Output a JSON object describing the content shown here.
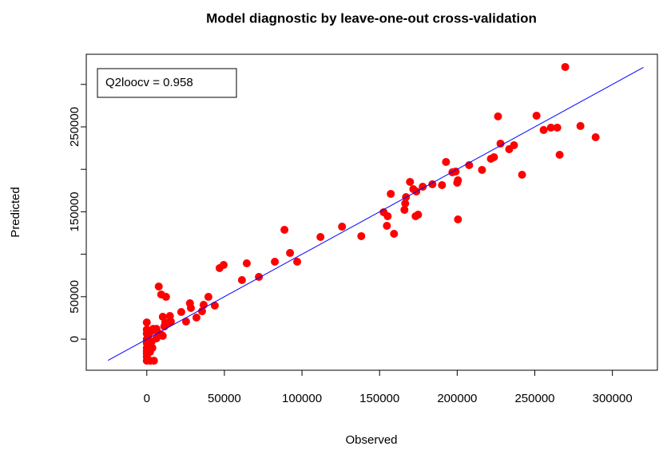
{
  "chart_data": {
    "type": "scatter",
    "title": "Model diagnostic by leave-one-out cross-validation",
    "xlabel": "Observed",
    "ylabel": "Predicted",
    "annotation": "Q2loocv = 0.958",
    "xlim": [
      -39000,
      329000
    ],
    "ylim": [
      -36600,
      335500
    ],
    "xticks": [
      0,
      50000,
      100000,
      150000,
      200000,
      250000,
      300000
    ],
    "yticks": [
      0,
      50000,
      {
        "value": 100000,
        "label": null
      },
      150000,
      {
        "value": 200000,
        "label": null
      },
      250000,
      {
        "value": 300000,
        "label": null
      }
    ],
    "points": {
      "color": "#ff0000",
      "x": [
        0,
        0,
        0,
        0,
        0,
        0,
        0,
        500,
        0,
        2100,
        4600,
        0,
        1000,
        3100,
        4100,
        6200,
        7700,
        9800,
        3100,
        6200,
        3600,
        1000,
        0,
        2100,
        7700,
        9300,
        12400,
        10300,
        10300,
        11900,
        13900,
        11300,
        14900,
        15500,
        22200,
        25300,
        27800,
        28400,
        32000,
        36600,
        39700,
        43800,
        35600,
        46900,
        49500,
        61300,
        64400,
        72200,
        82500,
        88700,
        92300,
        96900,
        111900,
        125800,
        138200,
        152600,
        155200,
        154700,
        157200,
        159300,
        166000,
        166500,
        167000,
        169600,
        171700,
        173700,
        173200,
        174800,
        177800,
        184000,
        190200,
        192800,
        196900,
        199000,
        200000,
        200500,
        200500,
        207700,
        216000,
        221700,
        223700,
        226300,
        227900,
        233500,
        236600,
        241800,
        251100,
        255700,
        260400,
        264500,
        266000,
        269600,
        279400,
        289200
      ],
      "y": [
        19700,
        11300,
        6600,
        0,
        -4700,
        -10300,
        -14100,
        -6600,
        -25400,
        -25400,
        -25400,
        -16900,
        4700,
        9400,
        12200,
        12200,
        6600,
        4700,
        -2800,
        900,
        -10300,
        -12200,
        -20700,
        -15000,
        62000,
        52600,
        49800,
        3800,
        26300,
        19700,
        18800,
        15000,
        27300,
        20700,
        32000,
        20700,
        42300,
        36700,
        25400,
        40400,
        49800,
        39500,
        32900,
        83700,
        87400,
        69600,
        89300,
        73300,
        91200,
        128800,
        101500,
        91200,
        120300,
        132500,
        121300,
        149500,
        144800,
        133500,
        171100,
        124100,
        152300,
        159800,
        167300,
        185200,
        176700,
        173900,
        144800,
        146600,
        179500,
        182400,
        181400,
        208700,
        196500,
        197400,
        184200,
        187100,
        141000,
        204900,
        199300,
        212400,
        214300,
        262300,
        230300,
        223700,
        228400,
        193600,
        263200,
        246300,
        249100,
        249100,
        217100,
        320500,
        251000,
        237800
      ]
    },
    "fit_line": {
      "color": "#0000ff",
      "x": [
        -25000,
        320000
      ],
      "y": [
        -25000,
        320000
      ]
    }
  }
}
